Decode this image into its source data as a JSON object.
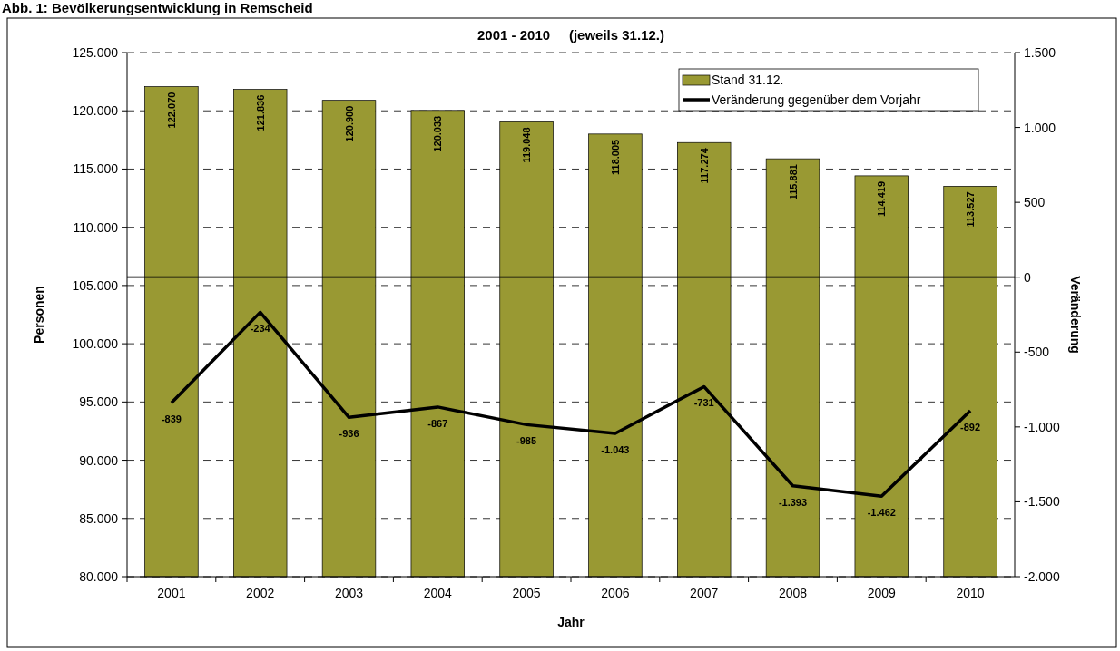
{
  "chart_data": {
    "type": "bar",
    "title": "Abb. 1: Bevölkerungsentwicklung in Remscheid",
    "subtitle": "2001 - 2010     (jeweils 31.12.)",
    "xlabel": "Jahr",
    "ylabel": "Personen",
    "y2label": "Veränderung",
    "categories": [
      "2001",
      "2002",
      "2003",
      "2004",
      "2005",
      "2006",
      "2007",
      "2008",
      "2009",
      "2010"
    ],
    "series": [
      {
        "name": "Stand 31.12.",
        "color": "#999933",
        "values": [
          122070,
          121836,
          120900,
          120033,
          119048,
          118005,
          117274,
          115881,
          114419,
          113527
        ],
        "value_labels": [
          "122.070",
          "121.836",
          "120.900",
          "120.033",
          "119.048",
          "118.005",
          "117.274",
          "115.881",
          "114.419",
          "113.527"
        ]
      },
      {
        "name": "Veränderung gegenüber dem Vorjahr",
        "type": "line",
        "axis": "y2",
        "color": "#000000",
        "values": [
          -839,
          -234,
          -936,
          -867,
          -985,
          -1043,
          -731,
          -1393,
          -1462,
          -892
        ],
        "value_labels": [
          "-839",
          "-234",
          "-936",
          "-867",
          "-985",
          "-1.043",
          "-731",
          "-1.393",
          "-1.462",
          "-892"
        ]
      }
    ],
    "ylim": [
      80000,
      125000
    ],
    "yticks": [
      {
        "value": 80000,
        "label": "80.000"
      },
      {
        "value": 85000,
        "label": "85.000"
      },
      {
        "value": 90000,
        "label": "90.000"
      },
      {
        "value": 95000,
        "label": "95.000"
      },
      {
        "value": 100000,
        "label": "100.000"
      },
      {
        "value": 105000,
        "label": "105.000"
      },
      {
        "value": 110000,
        "label": "110.000"
      },
      {
        "value": 115000,
        "label": "115.000"
      },
      {
        "value": 120000,
        "label": "120.000"
      },
      {
        "value": 125000,
        "label": "125.000"
      }
    ],
    "y2lim": [
      -2000,
      1500
    ],
    "y2ticks": [
      {
        "value": -2000,
        "label": "-2.000"
      },
      {
        "value": -1500,
        "label": "-1.500"
      },
      {
        "value": -1000,
        "label": "-1.000"
      },
      -500,
      0,
      500,
      {
        "value": 1000,
        "label": "1.000"
      },
      {
        "value": 1500,
        "label": "1.500"
      }
    ],
    "ref_lines": [
      {
        "axis": "y2",
        "value": 0,
        "color": "#000000"
      }
    ],
    "grid": "y",
    "legend": "top right",
    "line_style": "solid",
    "marker": "none"
  }
}
